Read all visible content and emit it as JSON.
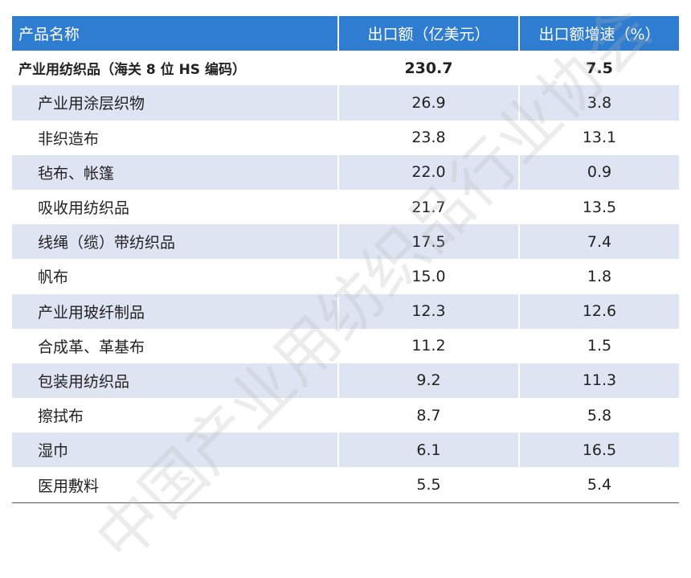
{
  "table": {
    "header": [
      "产品名称",
      "出口额（亿美元）",
      "出口额增速（%）"
    ],
    "rows": [
      [
        "产业用纺织品（海关 8 位 HS 编码）",
        "230.7",
        "7.5"
      ],
      [
        "产业用涂层织物",
        "26.9",
        "3.8"
      ],
      [
        "非织造布",
        "23.8",
        "13.1"
      ],
      [
        "毡布、帐篷",
        "22.0",
        "0.9"
      ],
      [
        "吸收用纺织品",
        "21.7",
        "13.5"
      ],
      [
        "线绳（缆）带纺织品",
        "17.5",
        "7.4"
      ],
      [
        "帆布",
        "15.0",
        "1.8"
      ],
      [
        "产业用玻纤制品",
        "12.3",
        "12.6"
      ],
      [
        "合成革、革基布",
        "11.2",
        "1.5"
      ],
      [
        "包装用纺织品",
        "9.2",
        "11.3"
      ],
      [
        "擦拭布",
        "8.7",
        "5.8"
      ],
      [
        "湿巾",
        "6.1",
        "16.5"
      ],
      [
        "医用敷料",
        "5.5",
        "5.4"
      ]
    ]
  },
  "watermark": "中国产业用纺织品行业协会"
}
